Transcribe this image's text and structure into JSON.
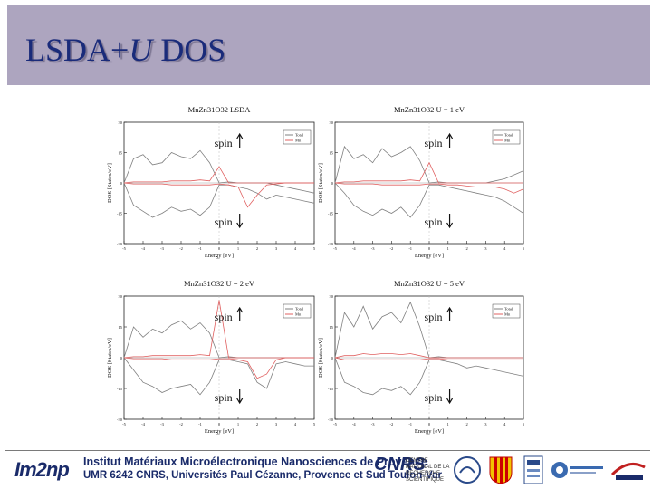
{
  "slide": {
    "title_main": "LSDA+",
    "title_italic": "U",
    "title_end": " DOS"
  },
  "footer": {
    "logo": "Im2np",
    "institute": "Institut Matériaux Microélectronique Nanosciences de Provence",
    "affiliation": "UMR 6242 CNRS, Universités Paul Cézanne, Provence et Sud Toulon-Var",
    "cnrs": "CNRS",
    "cnrs_text": "CENTRE NATIONAL DE LA RECHERCHE SCIENTIFIQUE"
  },
  "colors": {
    "title_bar": "#ada5bf",
    "title_text": "#1a2b7a",
    "total_line": "#808080",
    "mn_line": "#e06060"
  },
  "chart_data": [
    {
      "type": "line",
      "title": "MnZn31O32 LSDA",
      "xlabel": "Energy [eV]",
      "ylabel": "DOS [States/eV]",
      "xlim": [
        -5,
        5
      ],
      "ylim": [
        -30,
        30
      ],
      "xticks": [
        -5,
        -4,
        -3,
        -2,
        -1,
        0,
        1,
        2,
        3,
        4,
        5
      ],
      "yticks": [
        -30,
        -15,
        0,
        15,
        30
      ],
      "spin_up_label": "spin",
      "spin_down_label": "spin",
      "legend": [
        "Total",
        "Mn"
      ],
      "legend_position": "top-right",
      "series": [
        {
          "name": "Total",
          "x": [
            -5,
            -4.5,
            -4,
            -3.5,
            -3,
            -2.5,
            -2,
            -1.5,
            -1,
            -0.5,
            0,
            0.5,
            1,
            1.5,
            2,
            2.5,
            3,
            3.5,
            4,
            4.5,
            5
          ],
          "up": [
            0,
            12,
            14,
            9,
            10,
            15,
            13,
            12,
            16,
            10,
            0,
            0.5,
            0,
            0,
            0,
            0,
            -1,
            -2,
            -3,
            -4,
            -5
          ],
          "down": [
            0,
            -11,
            -14,
            -17,
            -15,
            -12,
            -14,
            -13,
            -16,
            -12,
            -1,
            -1,
            -2,
            -3,
            -5,
            -8,
            -6,
            -7,
            -8,
            -9,
            -10
          ]
        },
        {
          "name": "Mn",
          "x": [
            -5,
            -4.5,
            -4,
            -3.5,
            -3,
            -2.5,
            -2,
            -1.5,
            -1,
            -0.5,
            0,
            0.5,
            1,
            1.5,
            2,
            2.5,
            3,
            3.5,
            4,
            4.5,
            5
          ],
          "up": [
            0,
            0.5,
            0.5,
            0.5,
            0.5,
            1,
            1,
            1,
            1.5,
            1,
            8,
            0,
            0,
            0,
            0,
            0,
            0,
            0,
            0,
            0,
            0
          ],
          "down": [
            0,
            -0.5,
            -0.5,
            -0.5,
            -0.5,
            -1,
            -1,
            -1,
            -1,
            -1,
            -0.5,
            -1,
            -2,
            -12,
            -6,
            -1,
            -0.5,
            0,
            0,
            0,
            0
          ]
        }
      ]
    },
    {
      "type": "line",
      "title": "MnZn31O32 U = 1 eV",
      "xlabel": "Energy [eV]",
      "ylabel": "DOS [States/eV]",
      "xlim": [
        -5,
        5
      ],
      "ylim": [
        -30,
        30
      ],
      "xticks": [
        -5,
        -4,
        -3,
        -2,
        -1,
        0,
        1,
        2,
        3,
        4,
        5
      ],
      "yticks": [
        -30,
        -15,
        0,
        15,
        30
      ],
      "spin_up_label": "spin",
      "spin_down_label": "spin",
      "legend": [
        "Total",
        "Mn"
      ],
      "legend_position": "top-right",
      "series": [
        {
          "name": "Total",
          "x": [
            -5,
            -4.5,
            -4,
            -3.5,
            -3,
            -2.5,
            -2,
            -1.5,
            -1,
            -0.5,
            0,
            0.5,
            1,
            1.5,
            2,
            2.5,
            3,
            3.5,
            4,
            4.5,
            5
          ],
          "up": [
            0,
            18,
            12,
            14,
            10,
            17,
            13,
            15,
            18,
            11,
            0,
            0.5,
            0,
            0,
            0,
            0,
            0,
            1,
            2,
            4,
            6
          ],
          "down": [
            0,
            -5,
            -11,
            -14,
            -16,
            -13,
            -15,
            -12,
            -17,
            -11,
            -1,
            -1,
            -2,
            -3,
            -4,
            -5,
            -6,
            -7,
            -9,
            -12,
            -15
          ]
        },
        {
          "name": "Mn",
          "x": [
            -5,
            -4.5,
            -4,
            -3.5,
            -3,
            -2.5,
            -2,
            -1.5,
            -1,
            -0.5,
            0,
            0.5,
            1,
            1.5,
            2,
            2.5,
            3,
            3.5,
            4,
            4.5,
            5
          ],
          "up": [
            0,
            0.5,
            0.5,
            1,
            1,
            1,
            1,
            1,
            1.5,
            1,
            10,
            0,
            0,
            0,
            0,
            0,
            0,
            0,
            0,
            0,
            0
          ],
          "down": [
            0,
            -0.5,
            -0.5,
            -0.5,
            -0.5,
            -1,
            -1,
            -1,
            -1,
            -1,
            -0.5,
            -0.5,
            -1,
            -1,
            -1.5,
            -2,
            -2,
            -2,
            -3,
            -5,
            -3
          ]
        }
      ]
    },
    {
      "type": "line",
      "title": "MnZn31O32 U = 2 eV",
      "xlabel": "Energy [eV]",
      "ylabel": "DOS [States/eV]",
      "xlim": [
        -5,
        5
      ],
      "ylim": [
        -30,
        30
      ],
      "xticks": [
        -5,
        -4,
        -3,
        -2,
        -1,
        0,
        1,
        2,
        3,
        4,
        5
      ],
      "yticks": [
        -30,
        -15,
        0,
        15,
        30
      ],
      "spin_up_label": "spin",
      "spin_down_label": "spin",
      "legend": [
        "Total",
        "Mn"
      ],
      "legend_position": "top-right",
      "series": [
        {
          "name": "Total",
          "x": [
            -5,
            -4.5,
            -4,
            -3.5,
            -3,
            -2.5,
            -2,
            -1.5,
            -1,
            -0.5,
            0,
            0.5,
            1,
            1.5,
            2,
            2.5,
            3,
            3.5,
            4,
            4.5,
            5
          ],
          "up": [
            0,
            15,
            10,
            14,
            12,
            16,
            18,
            14,
            17,
            12,
            0,
            0.5,
            0,
            0,
            0,
            0,
            0,
            0,
            0,
            0,
            0
          ],
          "down": [
            0,
            -6,
            -12,
            -14,
            -17,
            -15,
            -14,
            -13,
            -18,
            -12,
            -1,
            -1,
            -2,
            -3,
            -12,
            -15,
            -3,
            -2,
            -3,
            -4,
            -4
          ]
        },
        {
          "name": "Mn",
          "x": [
            -5,
            -4.5,
            -4,
            -3.5,
            -3,
            -2.5,
            -2,
            -1.5,
            -1,
            -0.5,
            0,
            0.5,
            1,
            1.5,
            2,
            2.5,
            3,
            3.5,
            4,
            4.5,
            5
          ],
          "up": [
            0,
            0.5,
            0.5,
            1,
            1,
            1,
            1,
            1,
            1.5,
            1,
            28,
            0,
            0,
            0,
            0,
            0,
            0,
            0,
            0,
            0,
            0
          ],
          "down": [
            0,
            -0.5,
            -0.5,
            -0.5,
            -0.5,
            -1,
            -1,
            -1,
            -1,
            -1,
            -0.5,
            -0.5,
            -1,
            -2,
            -10,
            -8,
            -1,
            0,
            0,
            0,
            0
          ]
        }
      ]
    },
    {
      "type": "line",
      "title": "MnZn31O32 U = 5 eV",
      "xlabel": "Energy [eV]",
      "ylabel": "DOS [States/eV]",
      "xlim": [
        -5,
        5
      ],
      "ylim": [
        -30,
        30
      ],
      "xticks": [
        -5,
        -4,
        -3,
        -2,
        -1,
        0,
        1,
        2,
        3,
        4,
        5
      ],
      "yticks": [
        -30,
        -15,
        0,
        15,
        30
      ],
      "spin_up_label": "spin",
      "spin_down_label": "spin",
      "legend": [
        "Total",
        "Mn"
      ],
      "legend_position": "top-right",
      "series": [
        {
          "name": "Total",
          "x": [
            -5,
            -4.5,
            -4,
            -3.5,
            -3,
            -2.5,
            -2,
            -1.5,
            -1,
            -0.5,
            0,
            0.5,
            1,
            1.5,
            2,
            2.5,
            3,
            3.5,
            4,
            4.5,
            5
          ],
          "up": [
            0,
            22,
            15,
            25,
            14,
            20,
            22,
            17,
            27,
            15,
            0,
            0.5,
            0,
            0,
            0,
            0,
            0,
            0,
            0,
            0,
            0
          ],
          "down": [
            0,
            -12,
            -14,
            -17,
            -18,
            -15,
            -16,
            -14,
            -18,
            -12,
            -1,
            -1,
            -2,
            -3,
            -5,
            -4,
            -5,
            -6,
            -7,
            -8,
            -9
          ]
        },
        {
          "name": "Mn",
          "x": [
            -5,
            -4.5,
            -4,
            -3.5,
            -3,
            -2.5,
            -2,
            -1.5,
            -1,
            -0.5,
            0,
            0.5,
            1,
            1.5,
            2,
            2.5,
            3,
            3.5,
            4,
            4.5,
            5
          ],
          "up": [
            0,
            1,
            1,
            2,
            1.5,
            2,
            2,
            1.5,
            2,
            1,
            0,
            0,
            0,
            0,
            0,
            0,
            0,
            0,
            0,
            0,
            0
          ],
          "down": [
            0,
            -1,
            -1,
            -1,
            -1,
            -1,
            -1,
            -1,
            -1,
            -1,
            -0.5,
            -0.5,
            -1,
            -1,
            -1,
            -1,
            -1,
            -1,
            -1,
            -1,
            -1
          ]
        }
      ]
    }
  ]
}
